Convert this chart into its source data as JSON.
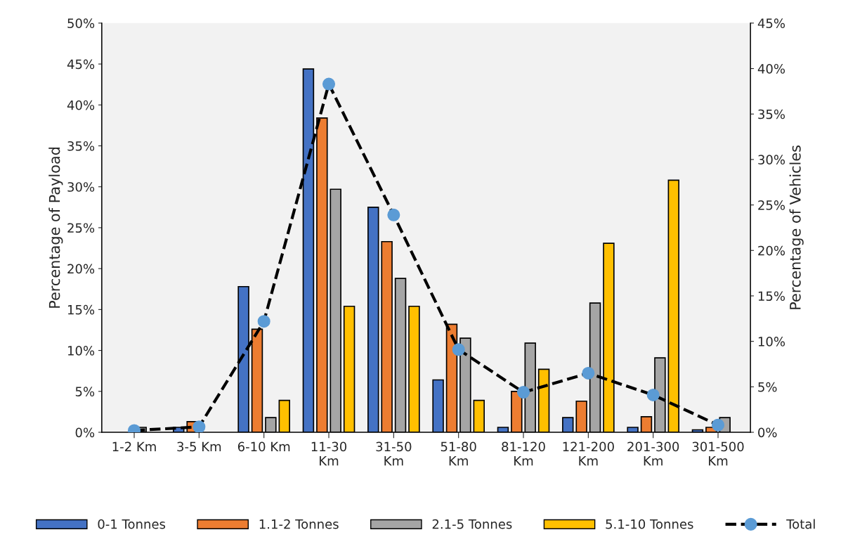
{
  "chart_data": {
    "type": "bar",
    "ylabel": "Percentage of Payload",
    "y2label": "Percentage of Vehicles",
    "categories": [
      "1-2 Km",
      "3-5 Km",
      "6-10 Km",
      "11-30\nKm",
      "31-50\nKm",
      "51-80\nKm",
      "81-120\nKm",
      "121-200\nKm",
      "201-300\nKm",
      "301-500\nKm"
    ],
    "series": [
      {
        "name": "0-1 Tonnes",
        "color": "#4472c4",
        "values": [
          null,
          0.6,
          17.8,
          44.4,
          27.5,
          6.4,
          0.6,
          1.8,
          0.6,
          0.3
        ]
      },
      {
        "name": "1.1-2 Tonnes",
        "color": "#ed7d31",
        "values": [
          null,
          1.3,
          12.6,
          38.4,
          23.3,
          13.2,
          5.0,
          3.8,
          1.9,
          0.6
        ]
      },
      {
        "name": "2.1-5 Tonnes",
        "color": "#a5a5a5",
        "values": [
          0.6,
          null,
          1.8,
          29.7,
          18.8,
          11.5,
          10.9,
          15.8,
          9.1,
          1.8
        ]
      },
      {
        "name": "5.1-10 Tonnes",
        "color": "#ffc000",
        "values": [
          null,
          null,
          3.9,
          15.4,
          15.4,
          3.9,
          7.7,
          23.1,
          30.8,
          null
        ]
      },
      {
        "name": "Total",
        "type": "line",
        "axis": "y2",
        "color": "#5b9bd5",
        "marker": "circle",
        "line_style": "dashed",
        "values": [
          0.2,
          0.6,
          12.2,
          38.3,
          23.9,
          9.1,
          4.4,
          6.5,
          4.1,
          0.8
        ]
      }
    ],
    "ylim": [
      0,
      50
    ],
    "yticks": [
      {
        "value": 0,
        "label": "0%"
      },
      {
        "value": 5,
        "label": "5%"
      },
      {
        "value": 10,
        "label": "10%"
      },
      {
        "value": 15,
        "label": "15%"
      },
      {
        "value": 20,
        "label": "20%"
      },
      {
        "value": 25,
        "label": "25%"
      },
      {
        "value": 30,
        "label": "30%"
      },
      {
        "value": 35,
        "label": "35%"
      },
      {
        "value": 40,
        "label": "40%"
      },
      {
        "value": 45,
        "label": "45%"
      },
      {
        "value": 50,
        "label": "50%"
      }
    ],
    "y2lim": [
      0,
      45
    ],
    "y2ticks": [
      {
        "value": 0,
        "label": "0%"
      },
      {
        "value": 5,
        "label": "5%"
      },
      {
        "value": 10,
        "label": "10%"
      },
      {
        "value": 15,
        "label": "15%"
      },
      {
        "value": 20,
        "label": "20%"
      },
      {
        "value": 25,
        "label": "25%"
      },
      {
        "value": 30,
        "label": "30%"
      },
      {
        "value": 35,
        "label": "35%"
      },
      {
        "value": 40,
        "label": "40%"
      },
      {
        "value": 45,
        "label": "45%"
      }
    ],
    "grid": false,
    "legend": "bottom"
  }
}
